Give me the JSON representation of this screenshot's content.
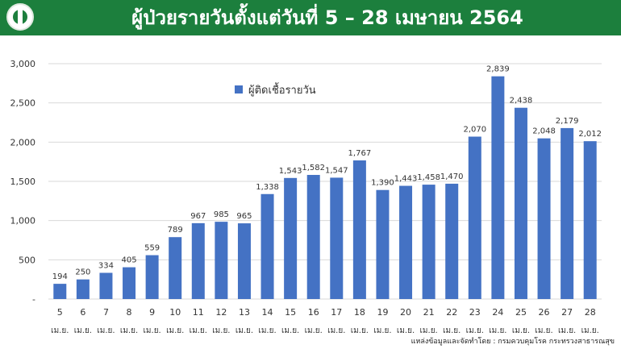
{
  "header": {
    "title": "ผู้ป่วยรายวันตั้งแต่วันที่ 5 – 28 เมษายน 2564",
    "logo_icon": "ministry-logo-icon",
    "bg_color": "#1c7f3d"
  },
  "source": "แหล่งข้อมูลและจัดทำโดย : กรมควบคุมโรค กระทรวงสาธารณสุข",
  "chart_data": {
    "type": "bar",
    "categories": [
      "5",
      "6",
      "7",
      "8",
      "9",
      "10",
      "11",
      "12",
      "13",
      "14",
      "15",
      "16",
      "17",
      "18",
      "19",
      "20",
      "21",
      "22",
      "23",
      "24",
      "25",
      "26",
      "27",
      "28"
    ],
    "category_sublabel": "เม.ย.",
    "series": [
      {
        "name": "ผู้ติดเชื้อรายวัน",
        "values": [
          194,
          250,
          334,
          405,
          559,
          789,
          967,
          985,
          965,
          1338,
          1543,
          1582,
          1547,
          1767,
          1390,
          1443,
          1458,
          1470,
          2070,
          2839,
          2438,
          2048,
          2179,
          2012
        ],
        "color": "#4472c4"
      }
    ],
    "ylim": [
      0,
      3000
    ],
    "yticks": [
      0,
      500,
      1000,
      1500,
      2000,
      2500,
      3000
    ],
    "ytick_labels": [
      "-",
      "500",
      "1,000",
      "1,500",
      "2,000",
      "2,500",
      "3,000"
    ],
    "data_labels": [
      "194",
      "250",
      "334",
      "405",
      "559",
      "789",
      "967",
      "985",
      "965",
      "1,338",
      "1,543",
      "1,582",
      "1,547",
      "1,767",
      "1,390",
      "1,443",
      "1,458",
      "1,470",
      "2,070",
      "2,839",
      "2,438",
      "2,048",
      "2,179",
      "2,012"
    ],
    "grid": true,
    "legend": "top-left"
  }
}
